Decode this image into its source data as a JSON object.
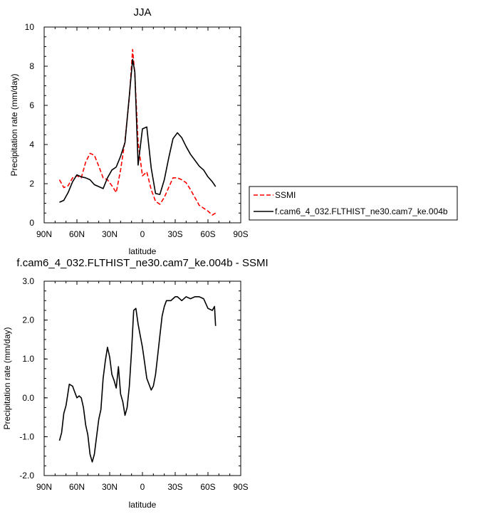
{
  "chart_data": [
    {
      "type": "line",
      "title": "JJA",
      "xlabel": "latitude",
      "ylabel": "Precipitation rate (mm/day)",
      "xlim": [
        90,
        -90
      ],
      "ylim": [
        0,
        10
      ],
      "x_ticks": [
        90,
        60,
        30,
        0,
        -30,
        -60,
        -90
      ],
      "x_tick_labels": [
        "90N",
        "60N",
        "30N",
        "0",
        "30S",
        "60S",
        "90S"
      ],
      "y_ticks": [
        0,
        2,
        4,
        6,
        8,
        10
      ],
      "y_tick_labels": [
        "0",
        "2",
        "4",
        "6",
        "8",
        "10"
      ],
      "legend": "outside-right",
      "series": [
        {
          "name": "SSMI",
          "color": "#ff0000",
          "dash": "dashed",
          "x": [
            76,
            72,
            68,
            64,
            60,
            56,
            52,
            48,
            44,
            40,
            36,
            32,
            28,
            24,
            20,
            16,
            12,
            9,
            7,
            4,
            0,
            -4,
            -8,
            -12,
            -16,
            -20,
            -24,
            -28,
            -32,
            -36,
            -40,
            -44,
            -48,
            -52,
            -56,
            -60,
            -64,
            -67
          ],
          "y": [
            2.2,
            1.8,
            1.9,
            2.3,
            2.4,
            2.3,
            3.1,
            3.55,
            3.45,
            2.9,
            2.3,
            2.2,
            1.9,
            1.55,
            2.7,
            4.2,
            6.4,
            8.85,
            7.6,
            4.1,
            2.4,
            2.6,
            1.7,
            1.1,
            0.95,
            1.3,
            1.8,
            2.3,
            2.3,
            2.2,
            2.05,
            1.7,
            1.3,
            0.9,
            0.75,
            0.6,
            0.4,
            0.5
          ]
        },
        {
          "name": "f.cam6_4_032.FLTHIST_ne30.cam7_ke.004b",
          "color": "#000000",
          "dash": "solid",
          "x": [
            76,
            72,
            68,
            64,
            60,
            56,
            52,
            48,
            44,
            40,
            36,
            32,
            28,
            24,
            20,
            16,
            12,
            9,
            7,
            4,
            0,
            -4,
            -8,
            -12,
            -16,
            -20,
            -24,
            -28,
            -32,
            -36,
            -40,
            -44,
            -48,
            -52,
            -56,
            -60,
            -64,
            -67
          ],
          "y": [
            1.05,
            1.15,
            1.55,
            2.1,
            2.45,
            2.35,
            2.3,
            2.2,
            1.95,
            1.85,
            1.75,
            2.3,
            2.7,
            2.85,
            3.4,
            4.1,
            6.5,
            8.35,
            7.7,
            2.95,
            4.8,
            4.9,
            2.8,
            1.5,
            1.45,
            2.2,
            3.3,
            4.3,
            4.6,
            4.35,
            3.9,
            3.5,
            3.2,
            2.9,
            2.7,
            2.35,
            2.1,
            1.85
          ]
        }
      ]
    },
    {
      "type": "line",
      "title": "f.cam6_4_032.FLTHIST_ne30.cam7_ke.004b - SSMI",
      "xlabel": "latitude",
      "ylabel": "Precipitation rate (mm/day)",
      "xlim": [
        90,
        -90
      ],
      "ylim": [
        -2,
        3
      ],
      "x_ticks": [
        90,
        60,
        30,
        0,
        -30,
        -60,
        -90
      ],
      "x_tick_labels": [
        "90N",
        "60N",
        "30N",
        "0",
        "30S",
        "60S",
        "90S"
      ],
      "y_ticks": [
        -2,
        -1,
        0,
        1,
        2,
        3
      ],
      "y_tick_labels": [
        "-2.0",
        "-1.0",
        "0.0",
        "1.0",
        "2.0",
        "3.0"
      ],
      "series": [
        {
          "color": "#000000",
          "dash": "solid",
          "x": [
            76,
            74,
            72,
            70,
            67,
            64,
            62,
            60,
            58,
            56,
            54,
            52,
            50,
            48,
            46,
            44,
            42,
            40,
            38,
            36,
            34,
            32,
            30,
            28,
            26,
            24,
            22,
            20,
            18,
            16,
            14,
            12,
            10,
            8,
            6,
            4,
            2,
            0,
            -2,
            -4,
            -6,
            -8,
            -10,
            -12,
            -14,
            -16,
            -18,
            -20,
            -22,
            -24,
            -26,
            -28,
            -30,
            -32,
            -36,
            -40,
            -44,
            -48,
            -52,
            -56,
            -60,
            -64,
            -66,
            -67
          ],
          "y": [
            -1.1,
            -0.9,
            -0.4,
            -0.2,
            0.35,
            0.3,
            0.15,
            0.0,
            0.05,
            0.0,
            -0.25,
            -0.7,
            -0.95,
            -1.45,
            -1.65,
            -1.45,
            -1.0,
            -0.55,
            -0.3,
            0.5,
            0.95,
            1.3,
            1.05,
            0.6,
            0.45,
            0.25,
            0.8,
            0.1,
            -0.1,
            -0.45,
            -0.25,
            0.3,
            1.2,
            2.25,
            2.3,
            1.9,
            1.6,
            1.3,
            0.9,
            0.5,
            0.35,
            0.2,
            0.3,
            0.6,
            1.1,
            1.6,
            2.1,
            2.35,
            2.5,
            2.5,
            2.5,
            2.55,
            2.6,
            2.6,
            2.5,
            2.6,
            2.55,
            2.6,
            2.6,
            2.55,
            2.3,
            2.25,
            2.35,
            1.85
          ]
        }
      ]
    }
  ]
}
